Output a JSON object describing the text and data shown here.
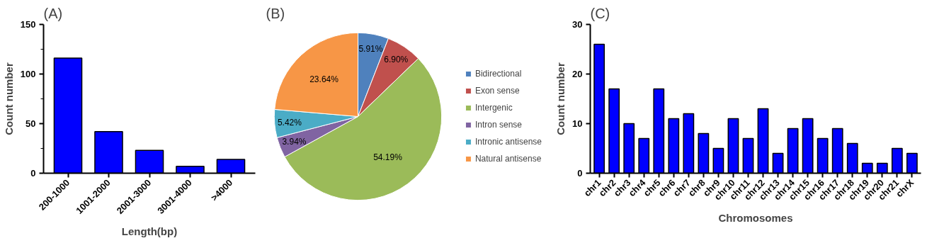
{
  "chart_data": [
    {
      "type": "bar",
      "title": "(A)",
      "xlabel": "Length(bp)",
      "ylabel": "Count number",
      "categories": [
        "200-1000",
        "1001-2000",
        "2001-3000",
        "3001-4000",
        ">4000"
      ],
      "values": [
        116,
        42,
        23,
        7,
        14
      ],
      "color": "#0000ff",
      "ylim": [
        0,
        150
      ],
      "yticks": [
        0,
        {
          "value": 25,
          "label": null
        },
        50,
        {
          "value": 75,
          "label": null
        },
        100,
        {
          "value": 125,
          "label": null
        },
        150
      ],
      "grid": false
    },
    {
      "type": "pie",
      "title": "(B)",
      "categories": [
        "Bidirectional",
        "Exon sense",
        "Intergenic",
        "Intron sense",
        "Intronic antisense",
        "Natural antisense"
      ],
      "values": [
        5.91,
        6.9,
        54.19,
        3.94,
        5.42,
        23.64
      ],
      "colors": [
        "#4f81bd",
        "#c0504d",
        "#9bbb59",
        "#8064a2",
        "#4bacc6",
        "#f79646"
      ],
      "value_labels": [
        "5.91%",
        "6.90%",
        "54.19%",
        "3.94%",
        "5.42%",
        "23.64%"
      ],
      "legend": "right"
    },
    {
      "type": "bar",
      "title": "(C)",
      "xlabel": "Chromosomes",
      "ylabel": "Count number",
      "categories": [
        "chr1",
        "chr2",
        "chr3",
        "chr4",
        "chr5",
        "chr6",
        "chr7",
        "chr8",
        "chr9",
        "chr10",
        "chr11",
        "chr12",
        "chr13",
        "chr14",
        "chr15",
        "chr16",
        "chr17",
        "chr18",
        "chr19",
        "chr20",
        "chr21",
        "chrX"
      ],
      "values": [
        26,
        17,
        10,
        7,
        17,
        11,
        12,
        8,
        5,
        11,
        7,
        13,
        4,
        9,
        11,
        7,
        9,
        6,
        2,
        2,
        5,
        4
      ],
      "color": "#0000ff",
      "ylim": [
        0,
        30
      ],
      "yticks": [
        0,
        10,
        20,
        30
      ],
      "grid": false
    }
  ]
}
